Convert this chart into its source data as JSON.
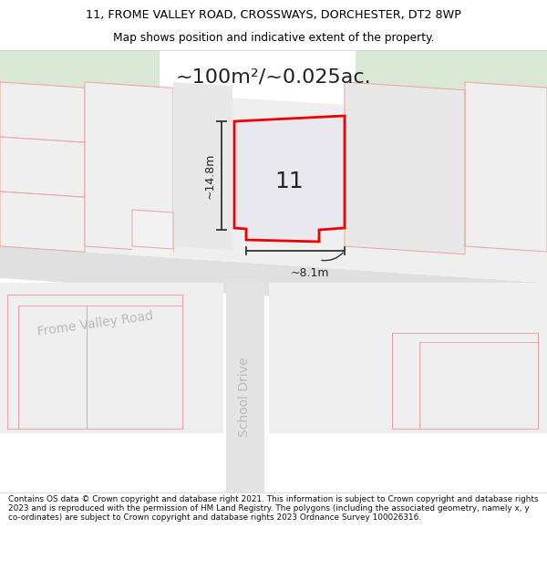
{
  "title_line1": "11, FROME VALLEY ROAD, CROSSWAYS, DORCHESTER, DT2 8WP",
  "title_line2": "Map shows position and indicative extent of the property.",
  "area_text": "~100m²/~0.025ac.",
  "label_number": "11",
  "label_width": "~8.1m",
  "label_height": "~14.8m",
  "road_label1": "Frome Valley Road",
  "road_label2": "School Drive",
  "footer_text": "Contains OS data © Crown copyright and database right 2021. This information is subject to Crown copyright and database rights 2023 and is reproduced with the permission of HM Land Registry. The polygons (including the associated geometry, namely x, y co-ordinates) are subject to Crown copyright and database rights 2023 Ordnance Survey 100026316.",
  "map_bg": "#f2f2f2",
  "green_bg": "#d8e8d4",
  "parcel_fill": "#efefef",
  "parcel_fill2": "#e8e8e8",
  "red_border": "#ee0000",
  "pink_border": "#f0a0a0",
  "road_fill": "#e0e0e0",
  "plot_fill": "#e8e8ee",
  "text_dark": "#222222",
  "text_gray": "#aaaaaa"
}
